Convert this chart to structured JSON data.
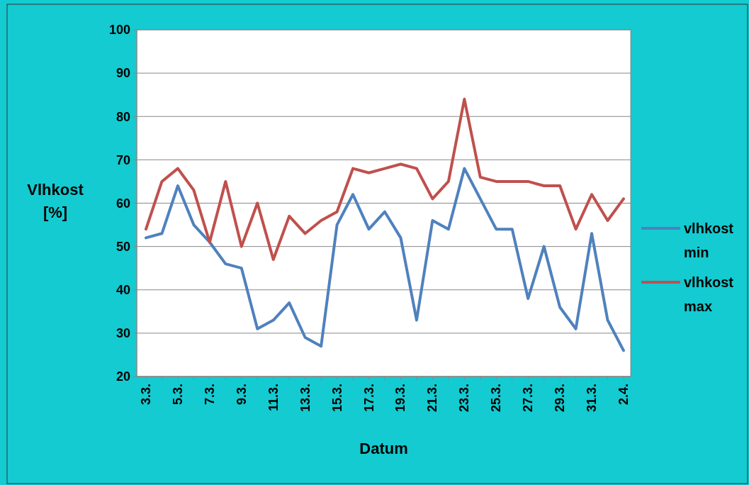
{
  "chart_data": {
    "type": "line",
    "xlabel": "Datum",
    "ylabel": "Vlhkost [%]",
    "categories": [
      "3.3.",
      null,
      "5.3.",
      null,
      "7.3.",
      null,
      "9.3.",
      null,
      "11.3.",
      null,
      "13.3.",
      null,
      "15.3.",
      null,
      "17.3.",
      null,
      "19.3.",
      null,
      "21.3.",
      null,
      "23.3.",
      null,
      "25.3.",
      null,
      "27.3.",
      null,
      "29.3.",
      null,
      "31.3.",
      null,
      "2.4."
    ],
    "series": [
      {
        "name": "vlhkost min",
        "color": "#4f81bd",
        "values": [
          52,
          53,
          64,
          55,
          51,
          46,
          45,
          31,
          33,
          37,
          29,
          27,
          55,
          62,
          54,
          58,
          52,
          33,
          56,
          54,
          68,
          61,
          54,
          54,
          38,
          50,
          36,
          31,
          53,
          33,
          26
        ]
      },
      {
        "name": "vlhkost max",
        "color": "#c0504d",
        "values": [
          54,
          65,
          68,
          63,
          51,
          65,
          50,
          60,
          47,
          57,
          53,
          56,
          58,
          68,
          67,
          68,
          69,
          68,
          61,
          65,
          84,
          66,
          65,
          65,
          65,
          64,
          64,
          54,
          62,
          56,
          61
        ]
      }
    ],
    "ylim": [
      20,
      100
    ],
    "yticks": [
      20,
      30,
      40,
      50,
      60,
      70,
      80,
      90,
      100
    ],
    "grid": "y",
    "legend": "right",
    "marker": "none",
    "line_style": "solid"
  }
}
